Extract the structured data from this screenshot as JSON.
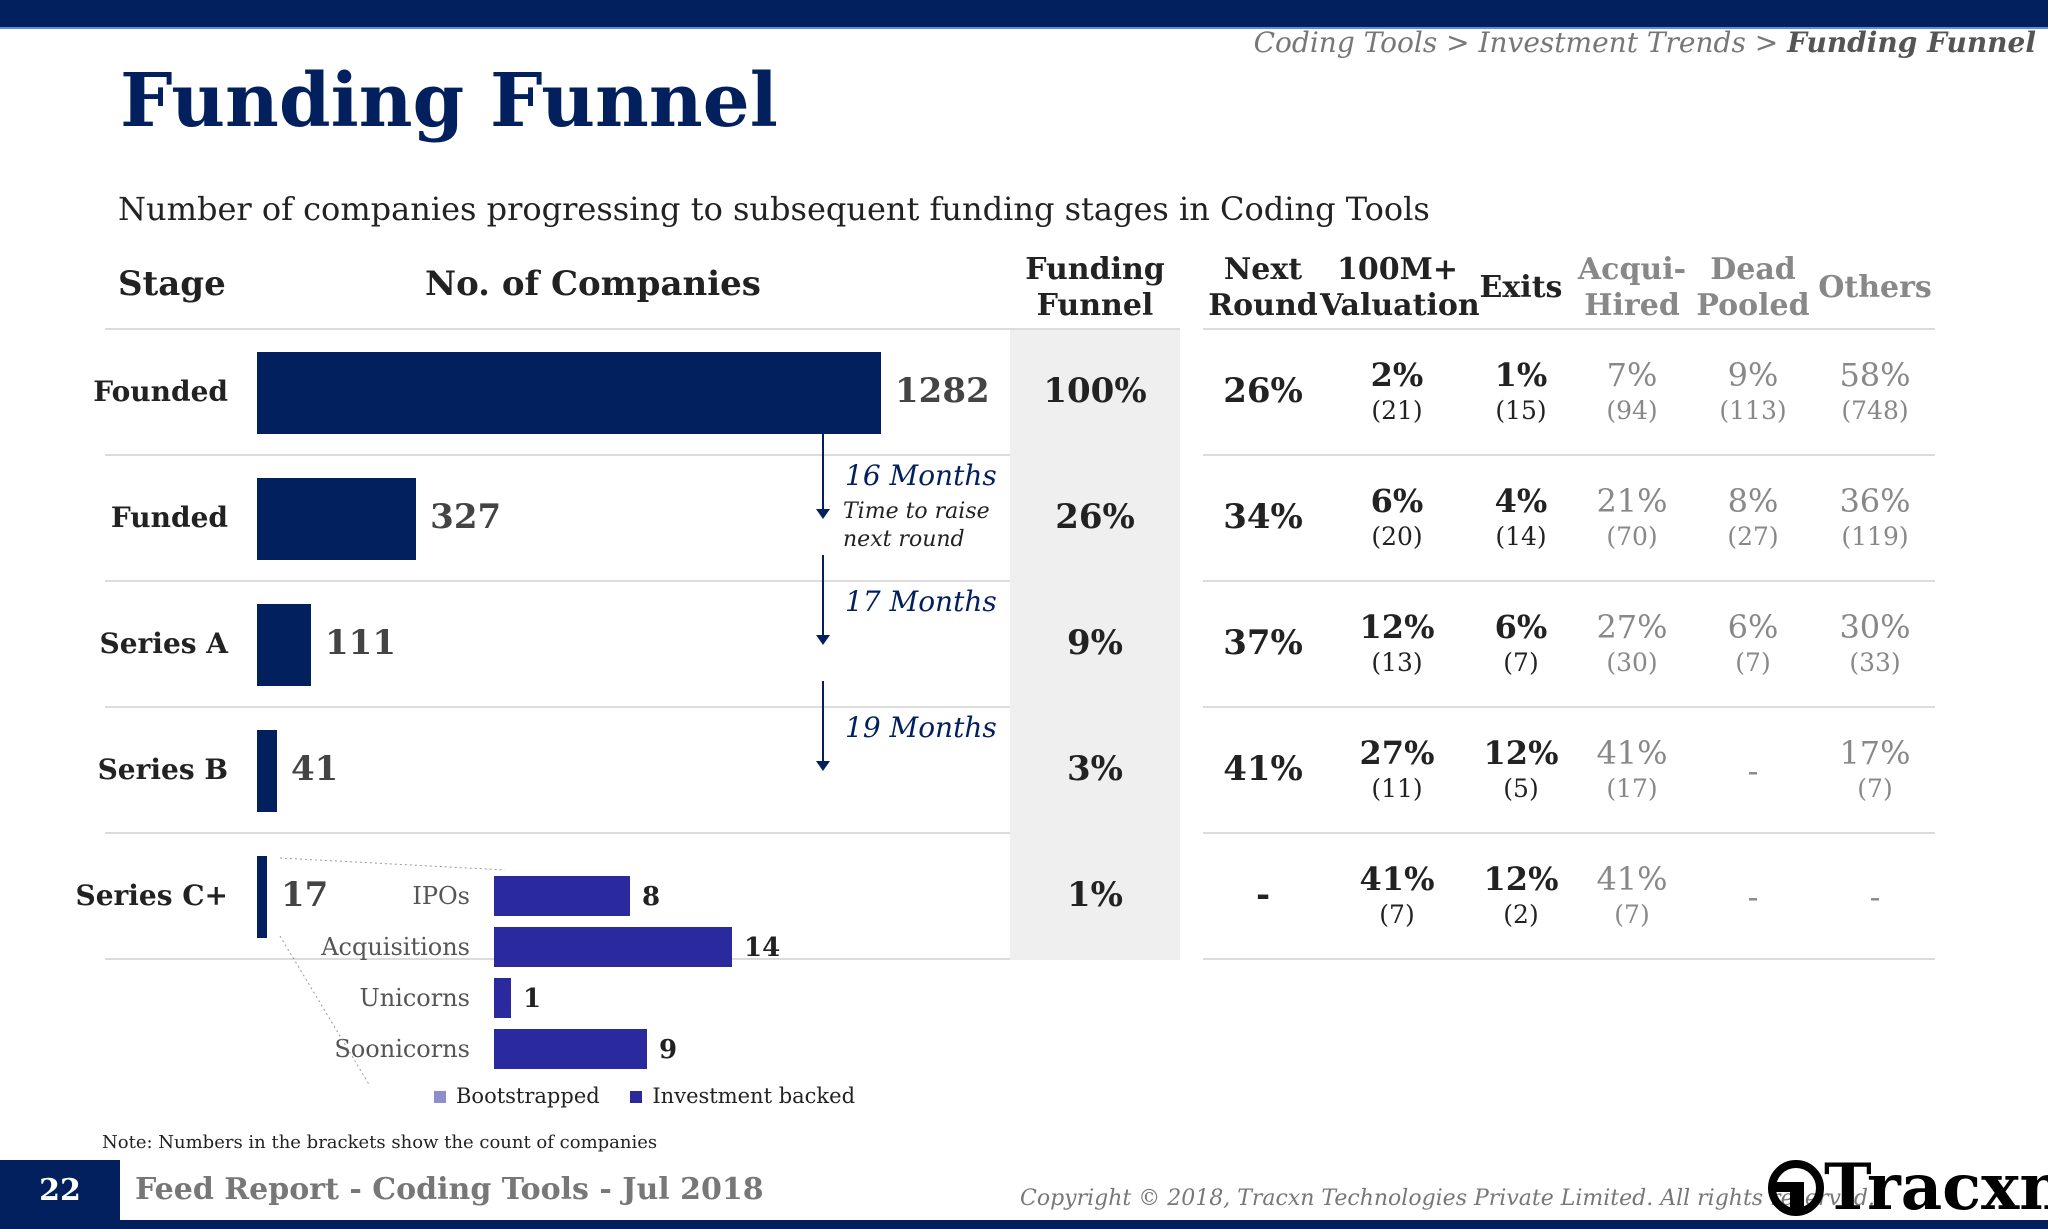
{
  "header": {
    "breadcrumb_prefix": "Coding Tools > Investment Trends > ",
    "breadcrumb_current": "Funding Funnel"
  },
  "title": "Funding Funnel",
  "subtitle": "Number of companies progressing to subsequent funding stages in Coding Tools",
  "columns": {
    "stage": "Stage",
    "companies": "No. of Companies",
    "funnel_1": "Funding",
    "funnel_2": "Funnel",
    "next_1": "Next",
    "next_2": "Round",
    "val_1": "100M+",
    "val_2": "Valuation",
    "exits": "Exits",
    "acq_1": "Acqui-",
    "acq_2": "Hired",
    "dead_1": "Dead",
    "dead_2": "Pooled",
    "others": "Others"
  },
  "time_to_raise": {
    "label_1": "Time to raise",
    "label_2": "next round",
    "intervals": [
      "16 Months",
      "17 Months",
      "19 Months"
    ]
  },
  "chart_data": {
    "type": "bar",
    "orientation": "horizontal",
    "categories": [
      "Founded",
      "Funded",
      "Series A",
      "Series B",
      "Series C+"
    ],
    "values": [
      1282,
      327,
      111,
      41,
      17
    ],
    "xlim": [
      0,
      1282
    ],
    "table": {
      "funding_funnel": [
        "100%",
        "26%",
        "9%",
        "3%",
        "1%"
      ],
      "next_round": [
        "26%",
        "34%",
        "37%",
        "41%",
        "-"
      ],
      "valuation_100m": [
        {
          "pct": "2%",
          "count": "(21)"
        },
        {
          "pct": "6%",
          "count": "(20)"
        },
        {
          "pct": "12%",
          "count": "(13)"
        },
        {
          "pct": "27%",
          "count": "(11)"
        },
        {
          "pct": "41%",
          "count": "(7)"
        }
      ],
      "exits": [
        {
          "pct": "1%",
          "count": "(15)"
        },
        {
          "pct": "4%",
          "count": "(14)"
        },
        {
          "pct": "6%",
          "count": "(7)"
        },
        {
          "pct": "12%",
          "count": "(5)"
        },
        {
          "pct": "12%",
          "count": "(2)"
        }
      ],
      "acqui_hired": [
        {
          "pct": "7%",
          "count": "(94)"
        },
        {
          "pct": "21%",
          "count": "(70)"
        },
        {
          "pct": "27%",
          "count": "(30)"
        },
        {
          "pct": "41%",
          "count": "(17)"
        },
        {
          "pct": "41%",
          "count": "(7)"
        }
      ],
      "dead_pooled": [
        {
          "pct": "9%",
          "count": "(113)"
        },
        {
          "pct": "8%",
          "count": "(27)"
        },
        {
          "pct": "6%",
          "count": "(7)"
        },
        {
          "pct": "-",
          "count": ""
        },
        {
          "pct": "-",
          "count": ""
        }
      ],
      "others": [
        {
          "pct": "58%",
          "count": "(748)"
        },
        {
          "pct": "36%",
          "count": "(119)"
        },
        {
          "pct": "30%",
          "count": "(33)"
        },
        {
          "pct": "17%",
          "count": "(7)"
        },
        {
          "pct": "-",
          "count": ""
        }
      ]
    },
    "series_c_breakdown": {
      "categories": [
        "IPOs",
        "Acquisitions",
        "Unicorns",
        "Soonicorns"
      ],
      "values": [
        8,
        14,
        1,
        9
      ],
      "xlim": [
        0,
        14
      ]
    },
    "legend": [
      "Bootstrapped",
      "Investment backed"
    ],
    "colors": {
      "primary": "#03205e",
      "investment_backed": "#2a2a9e",
      "bootstrapped": "#8e8ecf"
    }
  },
  "note": "Note: Numbers in the brackets show the count of companies",
  "footer": {
    "page_number": "22",
    "text": "Feed Report - Coding Tools - Jul 2018",
    "copyright": "Copyright © 2018, Tracxn Technologies Private Limited. All rights reserved.",
    "logo": "Tracxn"
  }
}
